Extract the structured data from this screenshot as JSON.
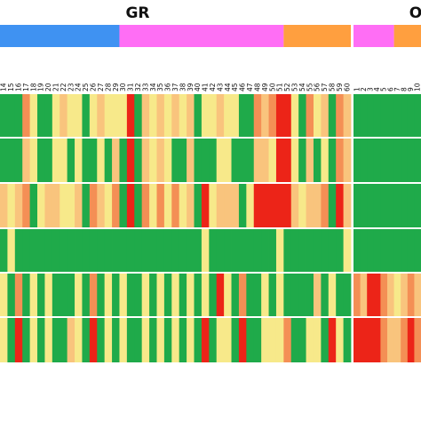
{
  "chart_data": {
    "type": "heatmap",
    "colors": {
      "blue": "#3f92f2",
      "pink": "#ff6ef5",
      "orange": "#ff9f3f",
      "level_1": "#1faa4a",
      "level_2": "#f7e98a",
      "level_3": "#f9c47d",
      "level_4": "#f48f55",
      "level_5": "#ec2418"
    },
    "panels": [
      {
        "title": "GR",
        "group_segments": [
          {
            "color": "blue",
            "n": 16
          },
          {
            "color": "pink",
            "n": 22
          },
          {
            "color": "orange",
            "n": 9
          }
        ],
        "columns": [
          "14",
          "15",
          "16",
          "17",
          "18",
          "19",
          "20",
          "21",
          "22",
          "23",
          "24",
          "25",
          "26",
          "27",
          "28",
          "29",
          "30",
          "31",
          "32",
          "33",
          "34",
          "35",
          "36",
          "37",
          "38",
          "39",
          "40",
          "41",
          "42",
          "43",
          "44",
          "45",
          "46",
          "47",
          "48",
          "49",
          "50",
          "51",
          "52",
          "53",
          "54",
          "55",
          "56",
          "57",
          "58",
          "59",
          "60"
        ],
        "rows": [
          [
            1,
            1,
            1,
            4,
            2,
            1,
            1,
            2,
            3,
            2,
            2,
            1,
            2,
            3,
            2,
            2,
            2,
            5,
            1,
            3,
            2,
            3,
            2,
            3,
            2,
            3,
            1,
            2,
            2,
            3,
            2,
            2,
            1,
            1,
            4,
            3,
            4,
            5,
            5,
            2,
            1,
            4,
            2,
            3,
            1,
            4,
            3
          ],
          [
            1,
            1,
            1,
            3,
            2,
            1,
            1,
            2,
            2,
            1,
            2,
            1,
            1,
            2,
            1,
            3,
            1,
            5,
            1,
            3,
            2,
            3,
            2,
            1,
            1,
            3,
            1,
            1,
            1,
            2,
            2,
            1,
            1,
            1,
            3,
            3,
            2,
            5,
            5,
            2,
            1,
            3,
            1,
            2,
            1,
            4,
            3
          ],
          [
            3,
            2,
            3,
            4,
            1,
            2,
            3,
            3,
            2,
            2,
            3,
            1,
            4,
            3,
            2,
            4,
            1,
            5,
            1,
            4,
            2,
            4,
            2,
            4,
            2,
            3,
            1,
            5,
            2,
            3,
            3,
            3,
            1,
            2,
            5,
            5,
            5,
            5,
            5,
            3,
            2,
            3,
            3,
            4,
            1,
            5,
            3
          ],
          [
            1,
            2,
            1,
            1,
            1,
            1,
            1,
            1,
            1,
            1,
            1,
            1,
            1,
            1,
            1,
            1,
            1,
            1,
            1,
            1,
            1,
            1,
            1,
            1,
            1,
            1,
            1,
            2,
            1,
            1,
            1,
            1,
            1,
            1,
            1,
            1,
            1,
            2,
            1,
            1,
            1,
            1,
            1,
            1,
            1,
            1,
            2
          ],
          [
            2,
            1,
            4,
            1,
            2,
            1,
            2,
            1,
            1,
            1,
            2,
            1,
            4,
            1,
            2,
            1,
            2,
            1,
            1,
            2,
            1,
            2,
            1,
            2,
            1,
            2,
            1,
            2,
            1,
            5,
            2,
            1,
            4,
            1,
            1,
            2,
            1,
            2,
            1,
            1,
            1,
            1,
            3,
            1,
            2,
            1,
            1
          ],
          [
            2,
            1,
            5,
            1,
            2,
            1,
            2,
            1,
            1,
            3,
            2,
            1,
            5,
            1,
            2,
            1,
            2,
            1,
            1,
            2,
            1,
            2,
            1,
            2,
            1,
            2,
            1,
            5,
            1,
            2,
            2,
            1,
            5,
            1,
            1,
            2,
            2,
            2,
            4,
            1,
            1,
            2,
            2,
            1,
            5,
            2,
            1
          ]
        ]
      },
      {
        "title": "O",
        "group_segments": [
          {
            "color": "pink",
            "n": 6
          },
          {
            "color": "orange",
            "n": 4
          }
        ],
        "columns": [
          "1",
          "2",
          "3",
          "4",
          "5",
          "6",
          "7",
          "8",
          "9",
          "10"
        ],
        "rows": [
          [
            1,
            1,
            1,
            1,
            1,
            1,
            1,
            1,
            1,
            1
          ],
          [
            1,
            1,
            1,
            1,
            1,
            1,
            1,
            1,
            1,
            1
          ],
          [
            1,
            1,
            1,
            1,
            1,
            1,
            1,
            1,
            1,
            1
          ],
          [
            1,
            1,
            1,
            1,
            1,
            1,
            1,
            1,
            1,
            1
          ],
          [
            4,
            3,
            5,
            5,
            4,
            3,
            2,
            3,
            4,
            3
          ],
          [
            5,
            5,
            5,
            5,
            4,
            3,
            3,
            4,
            5,
            4
          ]
        ]
      }
    ]
  }
}
